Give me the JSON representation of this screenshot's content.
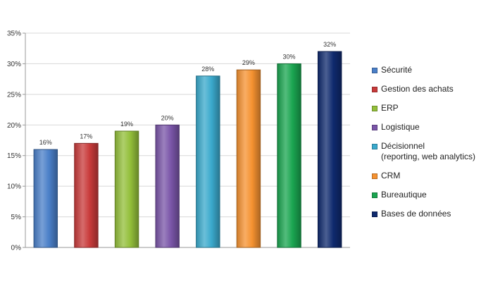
{
  "chart_data": {
    "type": "bar",
    "categories": [
      "Sécurité",
      "Gestion des achats",
      "ERP",
      "Logistique",
      "Décisionnel\n(reporting, web analytics)",
      "CRM",
      "Bureautique",
      "Bases de données"
    ],
    "series": [
      {
        "values": [
          16,
          17,
          19,
          20,
          28,
          29,
          30,
          32
        ]
      }
    ],
    "data_labels": [
      "16%",
      "17%",
      "19%",
      "20%",
      "28%",
      "29%",
      "30%",
      "32%"
    ],
    "colors": [
      "#4a7fc8",
      "#c83a3a",
      "#93bf3a",
      "#7a55a8",
      "#3aa9cc",
      "#f59230",
      "#1aa550",
      "#0f2a6e"
    ],
    "y_ticks": [
      "0%",
      "5%",
      "10%",
      "15%",
      "20%",
      "25%",
      "30%",
      "35%"
    ],
    "ylim": [
      0,
      35
    ],
    "y_unit": "%",
    "title": "",
    "xlabel": "",
    "ylabel": "",
    "grid": true,
    "legend_position": "right"
  }
}
